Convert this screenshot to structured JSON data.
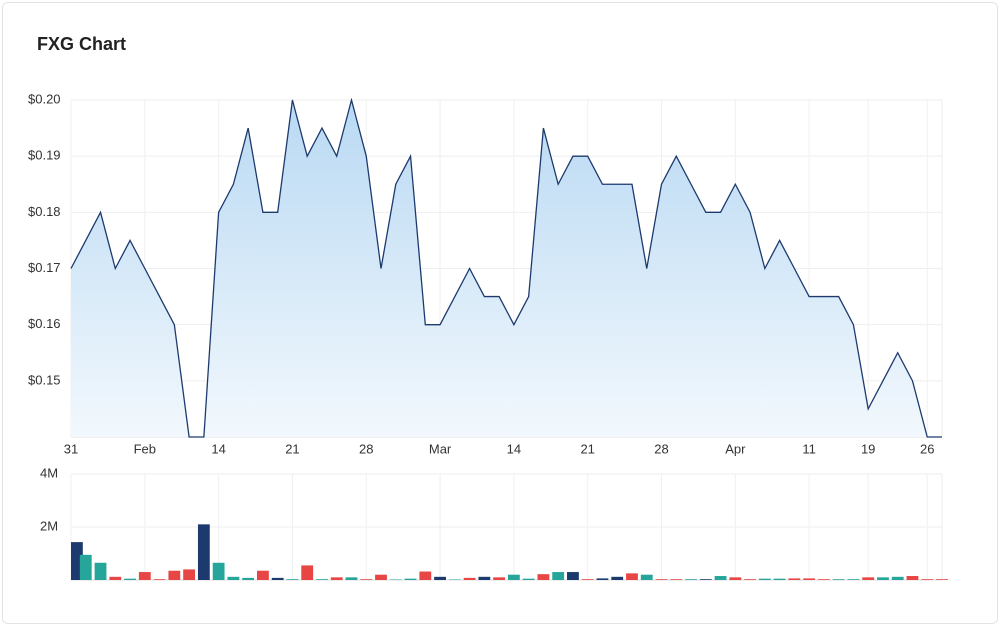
{
  "chart_data": [
    {
      "type": "line",
      "title": "FXG Chart",
      "color": "#1d3a6e",
      "grid": true,
      "categories": [
        "31",
        null,
        null,
        null,
        null,
        "Feb",
        null,
        null,
        null,
        null,
        "14",
        null,
        null,
        null,
        null,
        "21",
        null,
        null,
        null,
        null,
        "28",
        null,
        null,
        null,
        null,
        "Mar",
        null,
        null,
        null,
        null,
        "14",
        null,
        null,
        null,
        null,
        "21",
        null,
        null,
        null,
        null,
        "28",
        null,
        null,
        null,
        null,
        "Apr",
        null,
        null,
        null,
        null,
        "11",
        null,
        null,
        null,
        "19",
        null,
        null,
        null,
        "26",
        null
      ],
      "values": [
        0.17,
        0.175,
        0.18,
        0.17,
        0.175,
        0.17,
        0.165,
        0.16,
        0.14,
        0.14,
        0.18,
        0.185,
        0.195,
        0.18,
        0.18,
        0.2,
        0.19,
        0.195,
        0.19,
        0.2,
        0.19,
        0.17,
        0.185,
        0.19,
        0.16,
        0.16,
        0.165,
        0.17,
        0.165,
        0.165,
        0.16,
        0.165,
        0.195,
        0.185,
        0.19,
        0.19,
        0.185,
        0.185,
        0.185,
        0.17,
        0.185,
        0.19,
        0.185,
        0.18,
        0.18,
        0.185,
        0.18,
        0.17,
        0.175,
        0.17,
        0.165,
        0.165,
        0.165,
        0.16,
        0.145,
        0.15,
        0.155,
        0.15,
        0.14,
        0.14
      ],
      "ylim": [
        0.14,
        0.2
      ],
      "yticks": [
        {
          "value": 0.15,
          "label": "$0.15"
        },
        {
          "value": 0.16,
          "label": "$0.16"
        },
        {
          "value": 0.17,
          "label": "$0.17"
        },
        {
          "value": 0.18,
          "label": "$0.18"
        },
        {
          "value": 0.19,
          "label": "$0.19"
        },
        {
          "value": 0.2,
          "label": "$0.20"
        }
      ]
    },
    {
      "type": "bar",
      "values": [
        1430000,
        950000,
        650000,
        120000,
        50000,
        300000,
        30000,
        350000,
        400000,
        2100000,
        650000,
        120000,
        80000,
        350000,
        80000,
        30000,
        550000,
        30000,
        100000,
        100000,
        30000,
        200000,
        20000,
        50000,
        320000,
        120000,
        20000,
        80000,
        120000,
        100000,
        200000,
        50000,
        220000,
        300000,
        300000,
        30000,
        60000,
        120000,
        250000,
        200000,
        30000,
        30000,
        30000,
        30000,
        150000,
        100000,
        30000,
        50000,
        50000,
        60000,
        60000,
        30000,
        30000,
        30000,
        100000,
        100000,
        120000,
        150000,
        30000,
        30000
      ],
      "colors": [
        "#1d3a6e",
        "#26a69a",
        "#26a69a",
        "#e84545",
        "#26a69a",
        "#e84545",
        "#e84545",
        "#e84545",
        "#e84545",
        "#1d3a6e",
        "#26a69a",
        "#26a69a",
        "#26a69a",
        "#e84545",
        "#1d3a6e",
        "#26a69a",
        "#e84545",
        "#26a69a",
        "#e84545",
        "#26a69a",
        "#e84545",
        "#e84545",
        "#26a69a",
        "#26a69a",
        "#e84545",
        "#1d3a6e",
        "#26a69a",
        "#e84545",
        "#1d3a6e",
        "#e84545",
        "#26a69a",
        "#26a69a",
        "#e84545",
        "#26a69a",
        "#1d3a6e",
        "#e84545",
        "#1d3a6e",
        "#1d3a6e",
        "#e84545",
        "#26a69a",
        "#e84545",
        "#e84545",
        "#26a69a",
        "#1d3a6e",
        "#26a69a",
        "#e84545",
        "#e84545",
        "#26a69a",
        "#26a69a",
        "#e84545",
        "#e84545",
        "#e84545",
        "#26a69a",
        "#26a69a",
        "#e84545",
        "#26a69a",
        "#26a69a",
        "#e84545",
        "#e84545",
        "#e84545"
      ],
      "ylim": [
        0,
        4000000
      ],
      "yticks": [
        {
          "value": 2000000,
          "label": "2M"
        },
        {
          "value": 4000000,
          "label": "4M"
        }
      ]
    }
  ]
}
